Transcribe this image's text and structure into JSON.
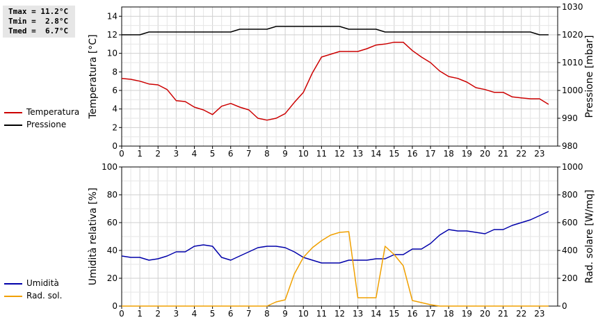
{
  "stats": {
    "tmax": "Tmax = 11.2°C",
    "tmin": "Tmin =  2.8°C",
    "tmed": "Tmed =  6.7°C"
  },
  "legend_top": [
    {
      "label": "Temperatura",
      "color": "#cc0000"
    },
    {
      "label": "Pressione",
      "color": "#000000"
    }
  ],
  "legend_bottom": [
    {
      "label": "Umidità",
      "color": "#0000aa"
    },
    {
      "label": "Rad. sol.",
      "color": "#f0a000"
    }
  ],
  "chart_data": [
    {
      "type": "line",
      "xlabel": "",
      "ylabel": "Temperatura [°C]",
      "ylabel_right": "Pressione [mbar]",
      "xlim": [
        0,
        24
      ],
      "xticks": [
        "0",
        "1",
        "2",
        "3",
        "4",
        "5",
        "6",
        "7",
        "8",
        "9",
        "10",
        "11",
        "12",
        "13",
        "14",
        "15",
        "16",
        "17",
        "18",
        "19",
        "20",
        "21",
        "22",
        "23"
      ],
      "ylim": [
        0,
        15
      ],
      "yticks": [
        "0",
        "2",
        "4",
        "6",
        "8",
        "10",
        "12",
        "14"
      ],
      "ylim_right": [
        980,
        1030
      ],
      "yticks_right": [
        "980",
        "990",
        "1000",
        "1010",
        "1020",
        "1030"
      ],
      "grid": true,
      "series": [
        {
          "name": "Temperatura",
          "axis": "left",
          "color": "#cc0000",
          "x": [
            0,
            0.5,
            1,
            1.5,
            2,
            2.5,
            3,
            3.5,
            4,
            4.5,
            5,
            5.5,
            6,
            6.5,
            7,
            7.5,
            8,
            8.5,
            9,
            9.5,
            10,
            10.5,
            11,
            11.5,
            12,
            12.5,
            13,
            13.5,
            14,
            14.5,
            15,
            15.5,
            16,
            16.5,
            17,
            17.5,
            18,
            18.5,
            19,
            19.5,
            20,
            20.5,
            21,
            21.5,
            22,
            22.5,
            23,
            23.5
          ],
          "y": [
            7.3,
            7.2,
            7.0,
            6.7,
            6.6,
            6.1,
            4.9,
            4.8,
            4.2,
            3.9,
            3.4,
            4.3,
            4.6,
            4.2,
            3.9,
            3.0,
            2.8,
            3.0,
            3.5,
            4.7,
            5.8,
            7.9,
            9.6,
            9.9,
            10.2,
            10.2,
            10.2,
            10.5,
            10.9,
            11.0,
            11.2,
            11.2,
            10.3,
            9.6,
            9.0,
            8.1,
            7.5,
            7.3,
            6.9,
            6.3,
            6.1,
            5.8,
            5.8,
            5.3,
            5.2,
            5.1,
            5.1,
            4.5
          ]
        },
        {
          "name": "Pressione",
          "axis": "right",
          "color": "#000000",
          "x": [
            0,
            1,
            1.5,
            2,
            2.5,
            3,
            3.5,
            4,
            4.5,
            5,
            5.5,
            6,
            6.5,
            7,
            7.5,
            8,
            8.5,
            9,
            9.5,
            10,
            10.5,
            11,
            11.5,
            12,
            12.5,
            13,
            13.5,
            14,
            14.5,
            15,
            16,
            17,
            18,
            19,
            20,
            21,
            22,
            22.5,
            23,
            23.5
          ],
          "y": [
            1020,
            1020,
            1021,
            1021,
            1021,
            1021,
            1021,
            1021,
            1021,
            1021,
            1021,
            1021,
            1022,
            1022,
            1022,
            1022,
            1023,
            1023,
            1023,
            1023,
            1023,
            1023,
            1023,
            1023,
            1022,
            1022,
            1022,
            1022,
            1021,
            1021,
            1021,
            1021,
            1021,
            1021,
            1021,
            1021,
            1021,
            1021,
            1020,
            1020
          ]
        }
      ]
    },
    {
      "type": "line",
      "xlabel": "",
      "ylabel": "Umidità relativa [%]",
      "ylabel_right": "Rad. solare [W/mq]",
      "xlim": [
        0,
        24
      ],
      "xticks": [
        "0",
        "1",
        "2",
        "3",
        "4",
        "5",
        "6",
        "7",
        "8",
        "9",
        "10",
        "11",
        "12",
        "13",
        "14",
        "15",
        "16",
        "17",
        "18",
        "19",
        "20",
        "21",
        "22",
        "23"
      ],
      "ylim": [
        0,
        100
      ],
      "yticks": [
        "0",
        "20",
        "40",
        "60",
        "80",
        "100"
      ],
      "ylim_right": [
        0,
        1000
      ],
      "yticks_right": [
        "0",
        "200",
        "400",
        "600",
        "800",
        "1000"
      ],
      "grid": true,
      "series": [
        {
          "name": "Umidità",
          "axis": "left",
          "color": "#0000aa",
          "x": [
            0,
            0.5,
            1,
            1.5,
            2,
            2.5,
            3,
            3.5,
            4,
            4.5,
            5,
            5.5,
            6,
            6.5,
            7,
            7.5,
            8,
            8.5,
            9,
            9.5,
            10,
            10.5,
            11,
            11.5,
            12,
            12.5,
            13,
            13.5,
            14,
            14.5,
            15,
            15.5,
            16,
            16.5,
            17,
            17.5,
            18,
            18.5,
            19,
            19.5,
            20,
            20.5,
            21,
            21.5,
            22,
            22.5,
            23,
            23.5
          ],
          "y": [
            36,
            35,
            35,
            33,
            34,
            36,
            39,
            39,
            43,
            44,
            43,
            35,
            33,
            36,
            39,
            42,
            43,
            43,
            42,
            39,
            35,
            33,
            31,
            31,
            31,
            33,
            33,
            33,
            34,
            34,
            37,
            37,
            41,
            41,
            45,
            51,
            55,
            54,
            54,
            53,
            52,
            55,
            55,
            58,
            60,
            62,
            65,
            68
          ]
        },
        {
          "name": "Rad. sol.",
          "axis": "right",
          "color": "#f0a000",
          "x": [
            0,
            1,
            2,
            3,
            4,
            5,
            6,
            7,
            8,
            8.5,
            9,
            9.5,
            10,
            10.5,
            11,
            11.5,
            12,
            12.5,
            13,
            13.5,
            14,
            14.5,
            15,
            15.5,
            16,
            16.5,
            17,
            17.5,
            18,
            19,
            20,
            21,
            22,
            23,
            23.5
          ],
          "y": [
            0,
            0,
            0,
            0,
            0,
            0,
            0,
            0,
            0,
            30,
            45,
            230,
            350,
            420,
            470,
            510,
            530,
            535,
            60,
            60,
            60,
            430,
            370,
            290,
            40,
            25,
            10,
            0,
            0,
            0,
            0,
            0,
            0,
            0,
            0
          ]
        }
      ]
    }
  ]
}
